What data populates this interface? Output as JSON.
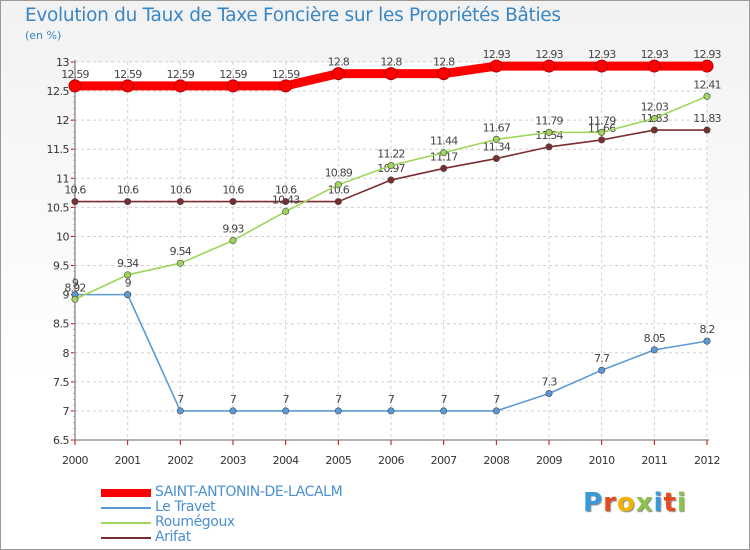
{
  "header": {
    "title": "Evolution du Taux de Taxe Foncière sur les Propriétés Bâties",
    "subtitle": "(en %)"
  },
  "chart_data": {
    "type": "line",
    "title": "Evolution du Taux de Taxe Foncière sur les Propriétés Bâties",
    "ylabel": "(en %)",
    "ylim": [
      6.5,
      13
    ],
    "yticks": [
      6.5,
      7,
      7.5,
      8,
      8.5,
      9,
      9.5,
      10,
      10.5,
      11,
      11.5,
      12,
      12.5,
      13
    ],
    "x": [
      "2000",
      "2001",
      "2002",
      "2003",
      "2004",
      "2005",
      "2006",
      "2007",
      "2008",
      "2009",
      "2010",
      "2011",
      "2012"
    ],
    "grid": "horizontal dashed",
    "legend_position": "bottom-left",
    "series": [
      {
        "name": "SAINT-ANTONIN-DE-LACALM",
        "color": "#ff0000",
        "values": [
          12.59,
          12.59,
          12.59,
          12.59,
          12.59,
          12.8,
          12.8,
          12.8,
          12.93,
          12.93,
          12.93,
          12.93,
          12.93
        ],
        "labels": [
          "12.59",
          "12.59",
          "12.59",
          "12.59",
          "12.59",
          "12.8",
          "12.8",
          "12.8",
          "12.93",
          "12.93",
          "12.93",
          "12.93",
          "12.93"
        ]
      },
      {
        "name": "Le Travet",
        "color": "#5b9bd5",
        "values": [
          9,
          9,
          7,
          7,
          7,
          7,
          7,
          7,
          7,
          7.3,
          7.7,
          8.05,
          8.2
        ],
        "labels": [
          "9",
          "9",
          "7",
          "7",
          "7",
          "7",
          "7",
          "7",
          "7",
          "7.3",
          "7.7",
          "8.05",
          "8.2"
        ]
      },
      {
        "name": "Roumégoux",
        "color": "#9ed55a",
        "values": [
          8.92,
          9.34,
          9.54,
          9.93,
          10.43,
          10.89,
          11.22,
          11.44,
          11.67,
          11.79,
          11.79,
          12.03,
          12.41
        ],
        "labels": [
          "8.92",
          "9.34",
          "9.54",
          "9.93",
          "10.43",
          "10.89",
          "11.22",
          "11.44",
          "11.67",
          "11.79",
          "11.79",
          "12.03",
          "12.41"
        ]
      },
      {
        "name": "Arifat",
        "color": "#7a2e30",
        "values": [
          10.6,
          10.6,
          10.6,
          10.6,
          10.6,
          10.6,
          10.97,
          11.17,
          11.34,
          11.54,
          11.66,
          11.83,
          11.83
        ],
        "labels": [
          "10.6",
          "10.6",
          "10.6",
          "10.6",
          "10.6",
          "10.6",
          "10.97",
          "11.17",
          "11.34",
          "11.54",
          "11.66",
          "11.83",
          "11.83"
        ]
      }
    ]
  },
  "logo": {
    "letters": [
      "P",
      "r",
      "o",
      "x",
      "i",
      "t",
      "i"
    ],
    "colors": [
      "#3a9ad9",
      "#e84a1e",
      "#f2b200",
      "#8bc34a",
      "#3a9ad9",
      "#e84a1e",
      "#8bc34a"
    ]
  }
}
